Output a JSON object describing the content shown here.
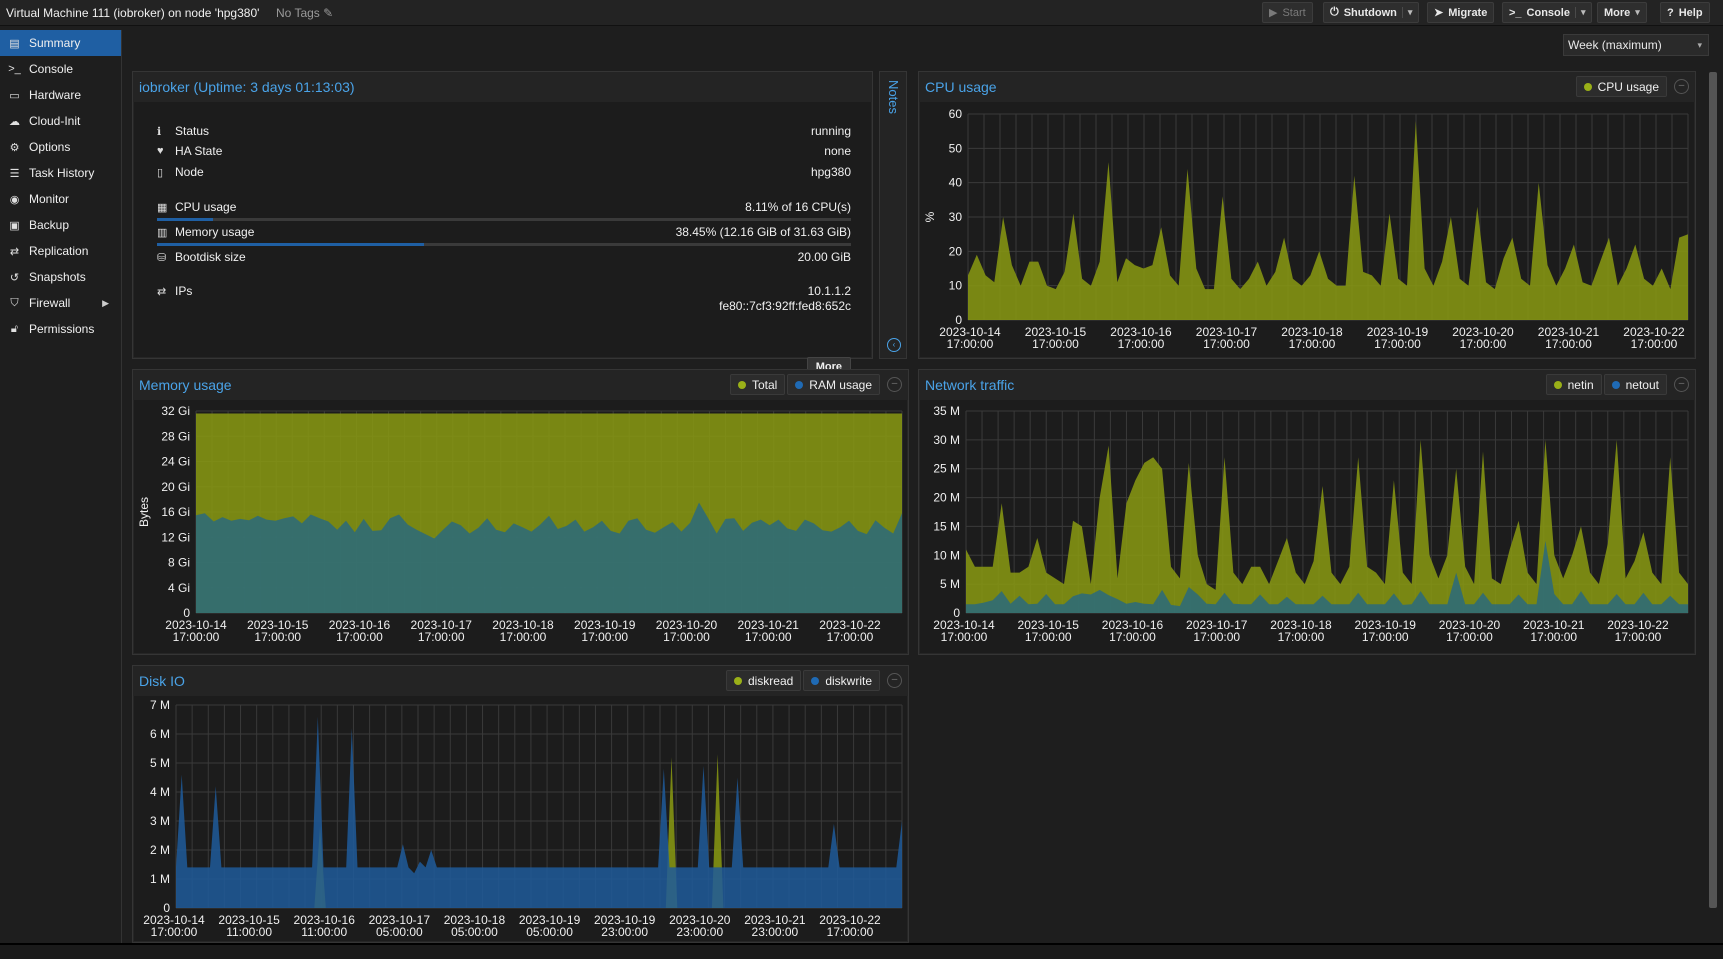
{
  "header": {
    "title": "Virtual Machine 111 (iobroker) on node 'hpg380'",
    "tags": "No Tags",
    "buttons": {
      "start": "Start",
      "shutdown": "Shutdown",
      "migrate": "Migrate",
      "console": "Console",
      "more": "More",
      "help": "Help"
    }
  },
  "sidebar": {
    "items": [
      {
        "label": "Summary",
        "icon": "book-icon"
      },
      {
        "label": "Console",
        "icon": "terminal-icon"
      },
      {
        "label": "Hardware",
        "icon": "monitor-icon"
      },
      {
        "label": "Cloud-Init",
        "icon": "cloud-icon"
      },
      {
        "label": "Options",
        "icon": "gear-icon"
      },
      {
        "label": "Task History",
        "icon": "list-icon"
      },
      {
        "label": "Monitor",
        "icon": "eye-icon"
      },
      {
        "label": "Backup",
        "icon": "floppy-icon"
      },
      {
        "label": "Replication",
        "icon": "retweet-icon"
      },
      {
        "label": "Snapshots",
        "icon": "history-icon"
      },
      {
        "label": "Firewall",
        "icon": "shield-icon"
      },
      {
        "label": "Permissions",
        "icon": "unlock-icon"
      }
    ]
  },
  "timeframe": "Week (maximum)",
  "status": {
    "title": "iobroker (Uptime: 3 days 01:13:03)",
    "status_label": "Status",
    "status_value": "running",
    "ha_label": "HA State",
    "ha_value": "none",
    "node_label": "Node",
    "node_value": "hpg380",
    "cpu_label": "CPU usage",
    "cpu_value": "8.11% of 16 CPU(s)",
    "cpu_fraction": 0.0811,
    "mem_label": "Memory usage",
    "mem_value": "38.45% (12.16 GiB of 31.63 GiB)",
    "mem_fraction": 0.3845,
    "disk_label": "Bootdisk size",
    "disk_value": "20.00 GiB",
    "ips_label": "IPs",
    "ip1": "10.1.1.2",
    "ip2": "fe80::7cf3:92ff:fed8:652c",
    "more": "More"
  },
  "notes": {
    "label": "Notes"
  },
  "chart_data": [
    {
      "id": "cpu",
      "type": "area",
      "title": "CPU usage",
      "ylabel": "%",
      "ylim": [
        0,
        60
      ],
      "yticks": [
        "0",
        "10",
        "20",
        "30",
        "40",
        "50",
        "60"
      ],
      "xticks": [
        "2023-10-14 17:00:00",
        "2023-10-15 17:00:00",
        "2023-10-16 17:00:00",
        "2023-10-17 17:00:00",
        "2023-10-18 17:00:00",
        "2023-10-19 17:00:00",
        "2023-10-20 17:00:00",
        "2023-10-21 17:00:00",
        "2023-10-22 17:00:00"
      ],
      "legend": [
        "CPU usage"
      ],
      "series": [
        {
          "name": "CPU usage",
          "color": "#8a9a12",
          "values": [
            13,
            19,
            13,
            11,
            30,
            16,
            10,
            17,
            17,
            10,
            9,
            14,
            31,
            12,
            10,
            17,
            46,
            11,
            18,
            16,
            15,
            16,
            27,
            13,
            10,
            44,
            15,
            9,
            9,
            36,
            12,
            9,
            12,
            17,
            10,
            14,
            24,
            12,
            10,
            13,
            20,
            12,
            10,
            10,
            42,
            14,
            13,
            10,
            31,
            12,
            10,
            58,
            15,
            10,
            17,
            30,
            12,
            10,
            33,
            11,
            9,
            18,
            24,
            12,
            10,
            40,
            16,
            10,
            15,
            22,
            11,
            10,
            17,
            24,
            10,
            15,
            22,
            12,
            10,
            15,
            9,
            24,
            25
          ]
        }
      ]
    },
    {
      "id": "memory",
      "type": "area",
      "title": "Memory usage",
      "ylabel": "Bytes",
      "ylim": [
        0,
        32
      ],
      "yticks": [
        "0",
        "4 Gi",
        "8 Gi",
        "12 Gi",
        "16 Gi",
        "20 Gi",
        "24 Gi",
        "28 Gi",
        "32 Gi"
      ],
      "xticks": [
        "2023-10-14 17:00:00",
        "2023-10-15 17:00:00",
        "2023-10-16 17:00:00",
        "2023-10-17 17:00:00",
        "2023-10-18 17:00:00",
        "2023-10-19 17:00:00",
        "2023-10-20 17:00:00",
        "2023-10-21 17:00:00",
        "2023-10-22 17:00:00"
      ],
      "legend": [
        "Total",
        "RAM usage"
      ],
      "series": [
        {
          "name": "Total",
          "color": "#8a9a12",
          "values": [
            31.6,
            31.6,
            31.6,
            31.6,
            31.6,
            31.6,
            31.6,
            31.6,
            31.6,
            31.6,
            31.6,
            31.6,
            31.6,
            31.6,
            31.6,
            31.6,
            31.6,
            31.6,
            31.6,
            31.6,
            31.6,
            31.6,
            31.6,
            31.6,
            31.6,
            31.6,
            31.6,
            31.6,
            31.6,
            31.6,
            31.6,
            31.6,
            31.6,
            31.6,
            31.6,
            31.6,
            31.6,
            31.6,
            31.6,
            31.6,
            31.6,
            31.6,
            31.6,
            31.6,
            31.6,
            31.6,
            31.6,
            31.6,
            31.6,
            31.6,
            31.6,
            31.6,
            31.6,
            31.6,
            31.6,
            31.6,
            31.6,
            31.6,
            31.6,
            31.6,
            31.6,
            31.6,
            31.6,
            31.6,
            31.6,
            31.6,
            31.6,
            31.6,
            31.6,
            31.6,
            31.6,
            31.6,
            31.6,
            31.6,
            31.6,
            31.6,
            31.6,
            31.6,
            31.6,
            31.6,
            31.6
          ]
        },
        {
          "name": "RAM usage",
          "color": "#2a6a7c",
          "values": [
            15.5,
            15.8,
            14.5,
            15.2,
            14.6,
            14.9,
            14.7,
            15.4,
            14.8,
            14.6,
            15.0,
            15.3,
            14.2,
            15.6,
            15.0,
            14.5,
            13.2,
            14.6,
            12.8,
            14.9,
            13.0,
            13.1,
            15.0,
            15.6,
            14.0,
            13.2,
            12.5,
            11.8,
            13.2,
            14.5,
            13.9,
            12.6,
            13.5,
            15.0,
            13.2,
            12.8,
            14.2,
            13.6,
            12.9,
            14.0,
            15.4,
            13.3,
            13.8,
            14.8,
            12.9,
            13.6,
            14.6,
            13.0,
            12.6,
            14.6,
            15.0,
            13.2,
            12.7,
            13.6,
            14.4,
            12.9,
            14.3,
            17.5,
            15.1,
            12.6,
            14.9,
            15.0,
            13.0,
            14.3,
            14.8,
            13.9,
            14.8,
            13.4,
            13.0,
            14.8,
            14.2,
            13.1,
            12.9,
            13.6,
            14.6,
            13.0,
            12.5,
            14.7,
            13.5,
            12.6,
            15.8
          ]
        }
      ]
    },
    {
      "id": "network",
      "type": "area",
      "title": "Network traffic",
      "ylabel": "",
      "ylim": [
        0,
        35
      ],
      "yticks": [
        "0",
        "5 M",
        "10 M",
        "15 M",
        "20 M",
        "25 M",
        "30 M",
        "35 M"
      ],
      "xticks": [
        "2023-10-14 17:00:00",
        "2023-10-15 17:00:00",
        "2023-10-16 17:00:00",
        "2023-10-17 17:00:00",
        "2023-10-18 17:00:00",
        "2023-10-19 17:00:00",
        "2023-10-20 17:00:00",
        "2023-10-21 17:00:00",
        "2023-10-22 17:00:00"
      ],
      "legend": [
        "netin",
        "netout"
      ],
      "series": [
        {
          "name": "netin",
          "color": "#8a9a12",
          "values": [
            11,
            8,
            8,
            8,
            19,
            7,
            7,
            8,
            13,
            7,
            6,
            5,
            16,
            15,
            5,
            20,
            29,
            6,
            19,
            23,
            26,
            27,
            25,
            8,
            6,
            26,
            10,
            5,
            4,
            27,
            7,
            5,
            8,
            8,
            5,
            9,
            13,
            7,
            5,
            9,
            22,
            7,
            5,
            8,
            27,
            8,
            7,
            5,
            23,
            7,
            5,
            30,
            10,
            6,
            10,
            25,
            8,
            5,
            28,
            6,
            5,
            11,
            16,
            7,
            5,
            30,
            10,
            6,
            10,
            15,
            7,
            5,
            12,
            30,
            6,
            9,
            14,
            7,
            5,
            27,
            7,
            5
          ]
        },
        {
          "name": "netout",
          "color": "#2a6a7c",
          "values": [
            1.5,
            1.5,
            1.8,
            2.2,
            3.8,
            1.6,
            3.0,
            1.5,
            1.6,
            3.3,
            1.5,
            1.5,
            2.9,
            3.4,
            3.2,
            4.0,
            3.1,
            2.4,
            1.6,
            1.9,
            1.6,
            1.5,
            4.0,
            1.4,
            1.2,
            4.5,
            3.2,
            1.6,
            1.5,
            3.5,
            1.6,
            1.5,
            1.5,
            3.2,
            1.5,
            1.5,
            2.8,
            1.5,
            1.5,
            1.5,
            3.0,
            1.5,
            1.5,
            1.5,
            3.5,
            1.5,
            1.5,
            1.5,
            3.4,
            1.4,
            1.5,
            3.8,
            1.5,
            1.5,
            1.5,
            7.0,
            1.5,
            1.5,
            3.5,
            1.5,
            1.5,
            1.5,
            3.2,
            1.5,
            1.5,
            12.5,
            3.3,
            1.5,
            1.5,
            3.8,
            1.5,
            1.5,
            1.5,
            3.3,
            1.5,
            1.5,
            3.5,
            1.5,
            1.5,
            3.0,
            1.5,
            1.5
          ]
        }
      ]
    },
    {
      "id": "disk",
      "type": "area",
      "title": "Disk IO",
      "ylabel": "",
      "ylim": [
        0,
        7
      ],
      "yticks": [
        "0",
        "1 M",
        "2 M",
        "3 M",
        "4 M",
        "5 M",
        "6 M",
        "7 M"
      ],
      "xticks": [
        "2023-10-14 17:00:00",
        "2023-10-15 11:00:00",
        "2023-10-16 11:00:00",
        "2023-10-17 05:00:00",
        "2023-10-18 05:00:00",
        "2023-10-19 05:00:00",
        "2023-10-19 23:00:00",
        "2023-10-20 23:00:00",
        "2023-10-21 23:00:00",
        "2023-10-22 17:00:00"
      ],
      "legend": [
        "diskread",
        "diskwrite"
      ],
      "series": [
        {
          "name": "diskread",
          "color": "#8a9a12",
          "values": [
            0,
            0,
            0,
            0,
            0,
            0,
            0,
            0,
            0,
            0,
            0,
            0,
            0,
            0,
            0,
            0,
            0,
            0,
            0,
            0,
            0,
            0,
            0,
            0,
            0,
            2.8,
            0,
            0,
            0,
            0,
            0,
            0,
            0,
            0,
            0,
            0,
            0,
            0,
            0,
            0,
            0,
            0,
            0,
            0,
            0,
            0,
            0,
            0,
            0,
            0,
            0,
            0,
            0,
            0,
            0,
            0,
            0,
            0,
            0,
            0,
            0,
            0,
            0,
            0,
            0,
            0,
            0,
            0,
            0,
            0,
            0,
            0,
            0,
            0,
            0,
            0,
            0,
            0,
            0,
            0,
            0,
            0,
            0,
            0,
            0,
            0,
            5.2,
            0,
            0,
            0,
            0,
            0,
            0,
            0,
            5.3,
            0,
            0,
            0,
            0,
            0,
            0,
            0,
            0,
            0,
            0,
            0,
            0,
            0,
            0,
            0,
            0,
            0,
            0,
            0,
            0,
            0,
            0,
            0,
            0,
            0,
            0,
            0,
            0,
            0,
            0,
            0,
            0
          ]
        },
        {
          "name": "diskwrite",
          "color": "#1f5a9a",
          "values": [
            1.4,
            4.6,
            1.4,
            1.4,
            1.4,
            1.4,
            1.4,
            4.2,
            1.4,
            1.4,
            1.4,
            1.4,
            1.4,
            1.4,
            1.4,
            1.4,
            1.4,
            1.4,
            1.4,
            1.4,
            1.4,
            1.4,
            1.4,
            1.4,
            1.4,
            6.6,
            1.4,
            1.4,
            1.4,
            1.4,
            1.4,
            6.2,
            1.4,
            1.4,
            1.4,
            1.4,
            1.4,
            1.4,
            1.4,
            1.4,
            2.2,
            1.4,
            1.2,
            1.6,
            1.4,
            2.0,
            1.4,
            1.4,
            1.4,
            1.4,
            1.4,
            1.4,
            1.4,
            1.4,
            1.4,
            1.4,
            1.4,
            1.4,
            1.4,
            1.4,
            1.4,
            1.4,
            1.4,
            1.4,
            1.4,
            1.4,
            1.4,
            1.4,
            1.4,
            1.4,
            1.4,
            1.4,
            1.4,
            1.4,
            1.4,
            1.4,
            1.4,
            1.4,
            1.4,
            1.4,
            1.4,
            1.4,
            1.4,
            1.4,
            1.4,
            1.4,
            4.8,
            1.4,
            1.4,
            1.4,
            1.4,
            1.4,
            1.4,
            4.9,
            1.4,
            1.4,
            1.4,
            1.4,
            1.4,
            4.5,
            1.4,
            1.4,
            1.4,
            1.4,
            1.4,
            1.4,
            1.4,
            1.4,
            1.4,
            1.4,
            1.4,
            1.4,
            1.4,
            1.4,
            1.4,
            1.4,
            2.9,
            1.4,
            1.4,
            1.4,
            1.4,
            1.4,
            1.4,
            1.4,
            1.4,
            1.4,
            1.4,
            1.4,
            3.0
          ]
        }
      ]
    }
  ]
}
